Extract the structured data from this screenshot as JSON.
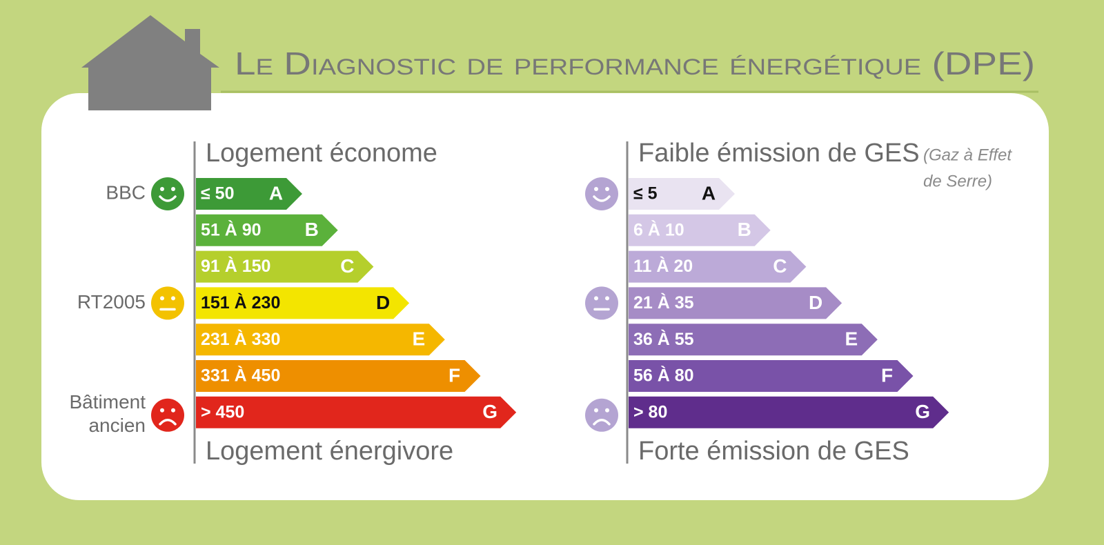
{
  "title": "Le Diagnostic de performance énergétique (DPE)",
  "energy": {
    "top_label": "Logement économe",
    "bottom_label": "Logement énergivore",
    "classes": [
      {
        "range": "≤ 50",
        "letter": "A",
        "color": "#3d9a37",
        "text_color": "#ffffff"
      },
      {
        "range": "51 À 90",
        "letter": "B",
        "color": "#5bb13b",
        "text_color": "#ffffff"
      },
      {
        "range": "91 À 150",
        "letter": "C",
        "color": "#b5cf2c",
        "text_color": "#ffffff"
      },
      {
        "range": "151 À 230",
        "letter": "D",
        "color": "#f3e500",
        "text_color": "#111111"
      },
      {
        "range": "231 À 330",
        "letter": "E",
        "color": "#f5b700",
        "text_color": "#ffffff"
      },
      {
        "range": "331 À 450",
        "letter": "F",
        "color": "#ee8f00",
        "text_color": "#ffffff"
      },
      {
        "range": "> 450",
        "letter": "G",
        "color": "#e1261c",
        "text_color": "#ffffff"
      }
    ],
    "markers": [
      {
        "label": [
          "BBC"
        ],
        "class": 0,
        "face": "happy",
        "color": "#3d9a37"
      },
      {
        "label": [
          "RT2005"
        ],
        "class": 3,
        "face": "neutral",
        "color": "#f3c200"
      },
      {
        "label": [
          "Bâtiment",
          "ancien"
        ],
        "class": 6,
        "face": "sad",
        "color": "#e1261c"
      }
    ]
  },
  "ges": {
    "top_label": "Faible émission de GES",
    "note": [
      "(Gaz à Effet",
      "de Serre)"
    ],
    "bottom_label": "Forte émission de GES",
    "classes": [
      {
        "range": "≤ 5",
        "letter": "A",
        "color": "#e9e3f1",
        "text_color": "#111111"
      },
      {
        "range": "6 À 10",
        "letter": "B",
        "color": "#d4c7e6",
        "text_color": "#ffffff"
      },
      {
        "range": "11 À 20",
        "letter": "C",
        "color": "#bcaad8",
        "text_color": "#ffffff"
      },
      {
        "range": "21 À 35",
        "letter": "D",
        "color": "#a68cc6",
        "text_color": "#ffffff"
      },
      {
        "range": "36 À 55",
        "letter": "E",
        "color": "#8d6db6",
        "text_color": "#ffffff"
      },
      {
        "range": "56 À 80",
        "letter": "F",
        "color": "#7952a8",
        "text_color": "#ffffff"
      },
      {
        "range": "> 80",
        "letter": "G",
        "color": "#5f2d8c",
        "text_color": "#ffffff"
      }
    ],
    "markers": [
      {
        "label": [],
        "class": 0,
        "face": "happy",
        "color": "#b4a4d2"
      },
      {
        "label": [],
        "class": 3,
        "face": "neutral",
        "color": "#b4a4d2"
      },
      {
        "label": [],
        "class": 6,
        "face": "sad",
        "color": "#b4a4d2"
      }
    ]
  }
}
